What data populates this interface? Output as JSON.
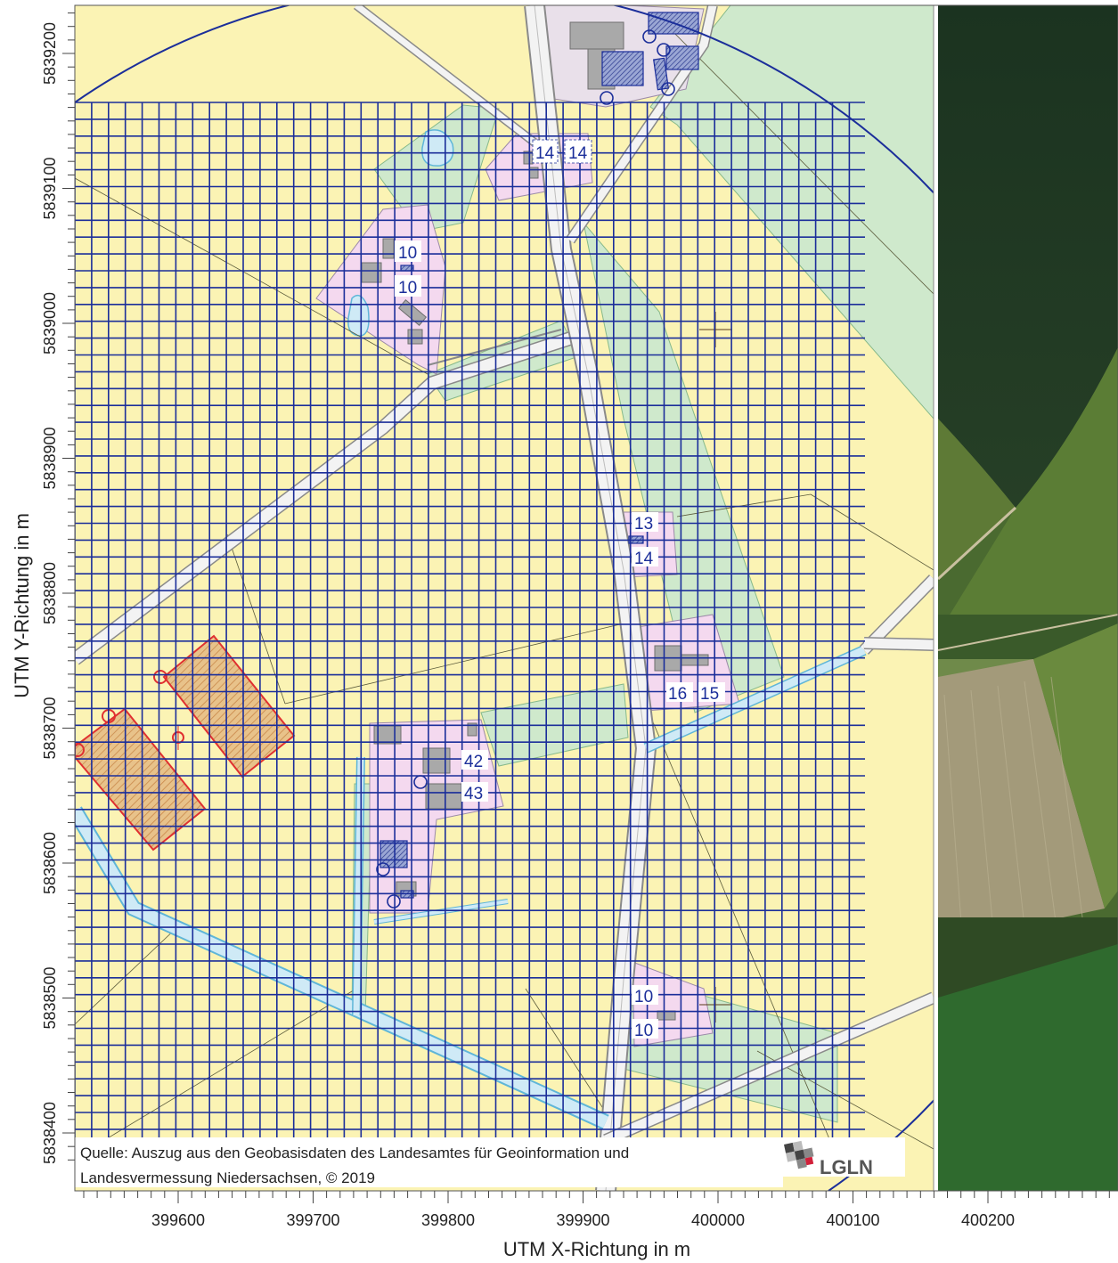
{
  "map": {
    "x_axis": {
      "title": "UTM X-Richtung in m",
      "ticks": [
        "399600",
        "399700",
        "399800",
        "399900",
        "400000",
        "400100",
        "400200"
      ]
    },
    "y_axis": {
      "title": "UTM Y-Richtung in m",
      "ticks": [
        "5839200",
        "5839100",
        "5839000",
        "5838900",
        "5838800",
        "5838700",
        "5838600",
        "5838500",
        "5838400"
      ]
    },
    "source_note": {
      "line1": "Quelle: Auszug aus den Geobasisdaten des Landesamtes für Geoinformation und",
      "line2": "Landesvermessung Niedersachsen, © 2019"
    },
    "logo": {
      "text": "LGLN"
    },
    "parcel_labels": [
      {
        "id": "p14a",
        "text": "14"
      },
      {
        "id": "p14b",
        "text": "14"
      },
      {
        "id": "p10a",
        "text": "10"
      },
      {
        "id": "p10b",
        "text": "10"
      },
      {
        "id": "p13",
        "text": "13"
      },
      {
        "id": "p14c",
        "text": "14"
      },
      {
        "id": "p16",
        "text": "16"
      },
      {
        "id": "p15",
        "text": "15"
      },
      {
        "id": "p42",
        "text": "42"
      },
      {
        "id": "p43",
        "text": "43"
      },
      {
        "id": "p10c",
        "text": "10"
      },
      {
        "id": "p10d",
        "text": "10"
      }
    ],
    "colors": {
      "farmland": "#fbf3b4",
      "grass": "#cfe9cc",
      "settlement": "#f4d9ef",
      "water": "#cfeaf6",
      "road": "#f3f3f3",
      "grid": "#1b2e9a",
      "project_area": "#e03030",
      "project_hatch": "#d9b07a",
      "forest": "#1f3a22"
    }
  }
}
